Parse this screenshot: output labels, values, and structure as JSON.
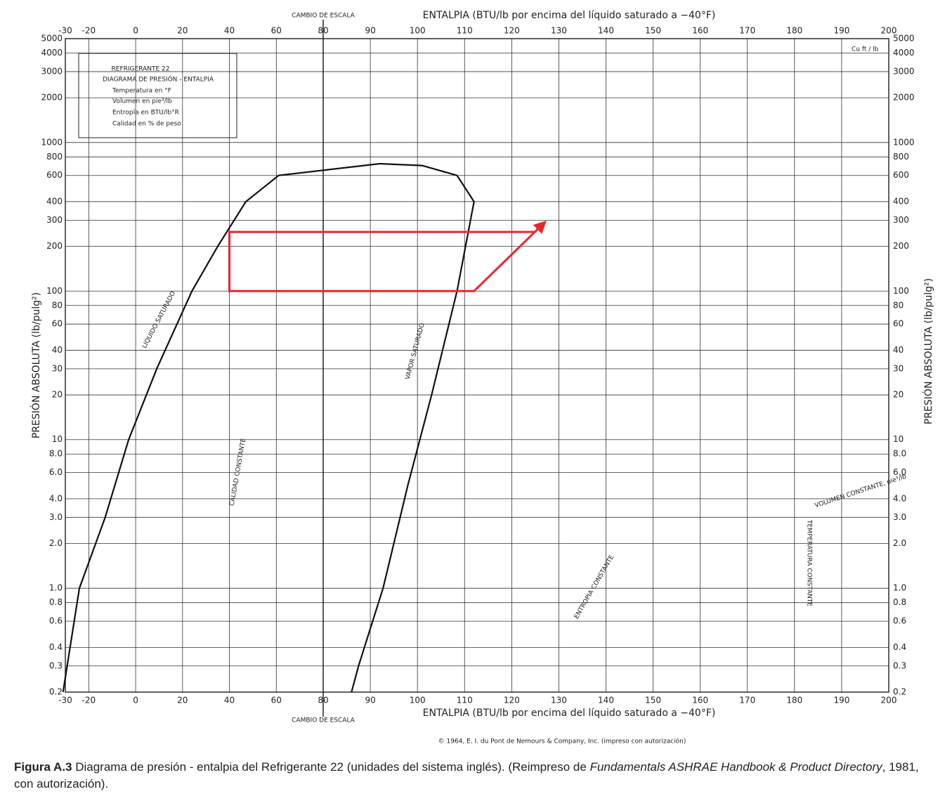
{
  "chart_data": {
    "type": "line",
    "x_label": "ENTALPIA (BTU/lb por encima del líquido saturado a  −40°F)",
    "y_label": "PRESIÓN ABSOLUTA (lb/pulg²)",
    "xlim": [
      -30,
      200
    ],
    "x_scale_break": {
      "value": 80,
      "label": "CAMBIO DE ESCALA"
    },
    "xticks": [
      -30,
      -20,
      0,
      20,
      40,
      60,
      80,
      90,
      100,
      110,
      120,
      130,
      140,
      150,
      160,
      170,
      180,
      190,
      200
    ],
    "ylim": [
      0.2,
      5000
    ],
    "y_scale": "log",
    "yticks": [
      0.2,
      0.3,
      0.4,
      0.6,
      0.8,
      {
        "value": 1,
        "label": "1.0"
      },
      {
        "value": 2,
        "label": "2.0"
      },
      {
        "value": 3,
        "label": "3.0"
      },
      {
        "value": 4,
        "label": "4.0"
      },
      {
        "value": 6,
        "label": "6.0"
      },
      {
        "value": 8,
        "label": "8.0"
      },
      10,
      20,
      30,
      40,
      60,
      80,
      100,
      200,
      300,
      400,
      600,
      800,
      1000,
      2000,
      3000,
      4000,
      5000
    ],
    "grid": true,
    "series": [
      {
        "color": "#111111",
        "x": [
          -31,
          -24,
          -13,
          -3,
          9,
          24,
          35,
          47,
          61,
          92
        ],
        "values": [
          0.2,
          1,
          3,
          10,
          30,
          100,
          200,
          400,
          600,
          720
        ]
      },
      {
        "color": "#111111",
        "x": [
          92,
          101,
          108.4,
          112,
          108.4,
          103,
          98,
          92.7,
          87.5,
          86
        ],
        "values": [
          720,
          700,
          600,
          400,
          100,
          20,
          5,
          1,
          0.3,
          0.2
        ]
      },
      {
        "color": "#e8262b",
        "x": [
          125,
          40,
          40,
          112,
          127
        ],
        "values": [
          250,
          250,
          100,
          100,
          290
        ]
      }
    ],
    "info_box": [
      "REFRIGERANTE 22",
      "DIAGRAMA DE PRESIÓN - ENTALPIA",
      "Temperatura en °F",
      "Volumen en pie³/lb",
      "Entropía en BTU/lb°R",
      "Calidad en % de peso"
    ],
    "annotations": [
      "LIQUIDO SATURADO",
      "VAPOR SATURADO",
      "CALIDAD CONSTANTE",
      "VOLUMEN CONSTANTE, pie³/lb",
      "TEMPERATURA CONSTANTE",
      "ENTROPIA CONSTANTE",
      "Cu ft / lb"
    ],
    "copyright": "© 1964, E. I. du Pont de Nemours & Company, Inc. (impreso con autorización)"
  },
  "caption": {
    "label": "Figura A.3",
    "text": " Diagrama de presión - entalpia del Refrigerante 22 (unidades del sistema inglés). (Reimpreso de ",
    "source": "Fundamentals ASHRAE Handbook & Product Directory",
    "tail": ", 1981, con autorización)."
  }
}
